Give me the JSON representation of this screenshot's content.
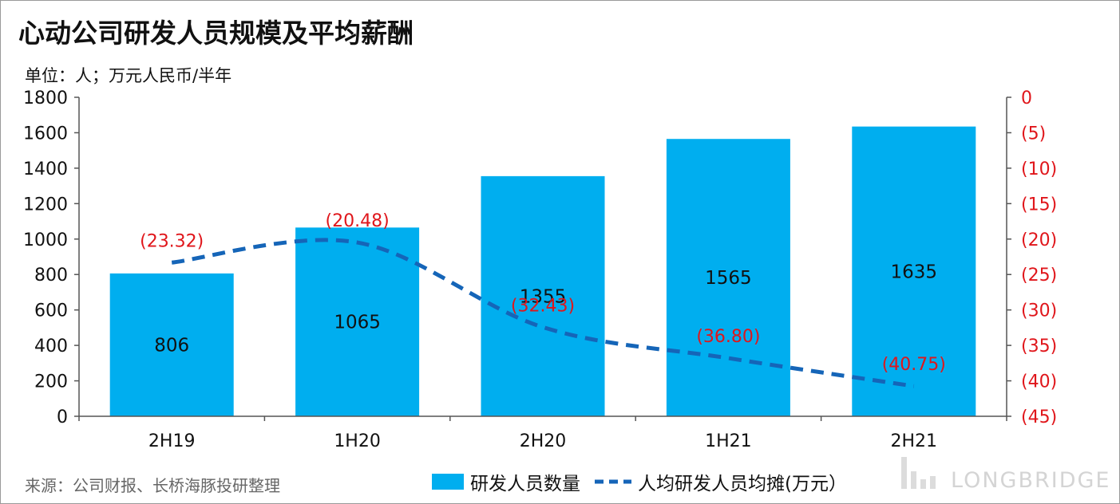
{
  "title": "心动公司研发人员规模及平均薪酬",
  "unit": "单位：人；万元人民币/半年",
  "source": "来源：公司财报、长桥海豚投研整理",
  "watermark": "LONGBRIDGE",
  "colors": {
    "bar": "#00aeef",
    "line": "#1565b8",
    "line_label": "#e0161b",
    "right_axis": "#e0161b",
    "axis": "#555555",
    "text": "#111111"
  },
  "chart_data": {
    "type": "bar",
    "categories": [
      "2H19",
      "1H20",
      "2H20",
      "1H21",
      "2H21"
    ],
    "series": [
      {
        "name": "研发人员数量",
        "type": "bar",
        "axis": "left",
        "values": [
          806,
          1065,
          1355,
          1565,
          1635
        ],
        "labels": [
          "806",
          "1065",
          "1355",
          "1565",
          "1635"
        ]
      },
      {
        "name": "人均研发人员均摊(万元）",
        "type": "line",
        "style": "dashed-smooth",
        "axis": "right",
        "values": [
          -23.32,
          -20.48,
          -32.43,
          -36.8,
          -40.75
        ],
        "labels": [
          "(23.32)",
          "(20.48)",
          "(32.43)",
          "(36.80)",
          "(40.75)"
        ]
      }
    ],
    "y_left": {
      "ylim": [
        0,
        1800
      ],
      "ticks": [
        "0",
        "200",
        "400",
        "600",
        "800",
        "1000",
        "1200",
        "1400",
        "1600",
        "1800"
      ]
    },
    "y_right": {
      "ylim": [
        -45,
        0
      ],
      "ticks": [
        "0",
        "(5)",
        "(10)",
        "(15)",
        "(20)",
        "(25)",
        "(30)",
        "(35)",
        "(40)",
        "(45)"
      ]
    },
    "grid": false,
    "legend_position": "bottom"
  }
}
